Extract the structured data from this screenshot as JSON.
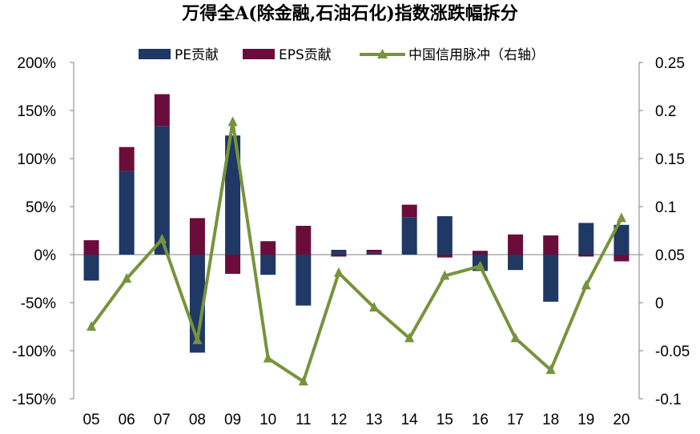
{
  "chart_data": {
    "type": "bar",
    "title": "万得全A(除金融,石油石化)指数涨跌幅拆分",
    "categories": [
      "05",
      "06",
      "07",
      "08",
      "09",
      "10",
      "11",
      "12",
      "13",
      "14",
      "15",
      "16",
      "17",
      "18",
      "19",
      "20"
    ],
    "series": [
      {
        "name": "PE贡献",
        "type": "bar",
        "axis": "left",
        "color": "#1f3864",
        "values": [
          -27,
          87,
          134,
          -102,
          124,
          -21,
          -53,
          5,
          2,
          39,
          40,
          -17,
          -16,
          -49,
          33,
          31
        ]
      },
      {
        "name": "EPS贡献",
        "type": "bar",
        "axis": "left",
        "color": "#6b0d3a",
        "values": [
          15,
          25,
          33,
          38,
          -20,
          14,
          30,
          -2,
          3,
          13,
          -3,
          4,
          21,
          20,
          -2,
          -7
        ]
      },
      {
        "name": "中国信用脉冲（右轴）",
        "type": "line",
        "axis": "right",
        "color": "#77933c",
        "values": [
          -0.025,
          0.025,
          0.066,
          -0.039,
          0.188,
          -0.058,
          -0.082,
          0.031,
          -0.005,
          -0.037,
          0.028,
          0.038,
          -0.037,
          -0.07,
          0.018,
          0.088
        ]
      }
    ],
    "y_left": {
      "min": -150,
      "max": 200,
      "step": 50,
      "tick_labels": [
        "200%",
        "150%",
        "100%",
        "50%",
        "0%",
        "-50%",
        "-100%",
        "-150%"
      ]
    },
    "y_right": {
      "min": -0.1,
      "max": 0.25,
      "step": 0.05,
      "tick_labels": [
        "0.25",
        "0.2",
        "0.15",
        "0.1",
        "0.05",
        "0",
        "-0.05",
        "-0.1"
      ]
    },
    "stacked": true,
    "grid": false,
    "legend_position": "top"
  }
}
